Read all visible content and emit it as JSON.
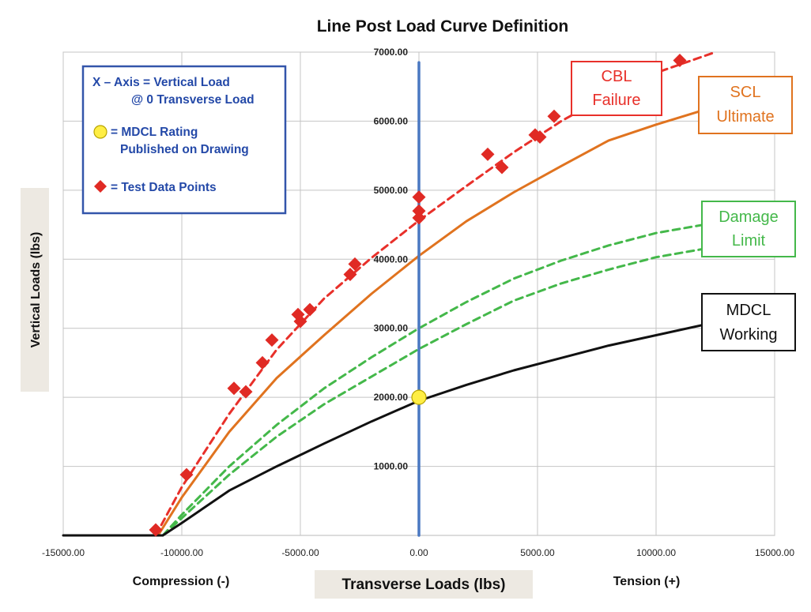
{
  "chart_data": {
    "type": "line",
    "title": "Line Post Load Curve Definition",
    "xlabel": "Transverse Loads (lbs)",
    "ylabel": "Vertical Loads (lbs)",
    "x_left_label": "Compression (-)",
    "x_right_label": "Tension (+)",
    "xlim": [
      -15000,
      15000
    ],
    "ylim": [
      0,
      7000
    ],
    "x_ticks": [
      "-15000.00",
      "-10000.00",
      "-5000.00",
      "0.00",
      "5000.00",
      "10000.00",
      "15000.00"
    ],
    "y_ticks": [
      "1000.00",
      "2000.00",
      "3000.00",
      "4000.00",
      "5000.00",
      "6000.00",
      "7000.00"
    ],
    "grid": true,
    "legend": {
      "position": "top-left",
      "items": [
        {
          "symbol": "none",
          "text": [
            "X – Axis =  Vertical Load",
            "@ 0 Transverse Load"
          ]
        },
        {
          "symbol": "yellow-circle",
          "text": [
            "= MDCL Rating",
            "Published on Drawing"
          ]
        },
        {
          "symbol": "red-diamond",
          "text": [
            "= Test Data Points"
          ]
        }
      ]
    },
    "series": [
      {
        "name": "CBL Failure",
        "label_lines": [
          "CBL",
          "Failure"
        ],
        "color": "#e8302a",
        "style": "dashed",
        "x": [
          -11100,
          -10000,
          -8000,
          -6000,
          -4000,
          -2000,
          0,
          2000,
          4000,
          6000,
          8000,
          10000,
          12500
        ],
        "y": [
          0,
          700,
          1760,
          2690,
          3430,
          4020,
          4560,
          5060,
          5550,
          6000,
          6380,
          6700,
          7000
        ]
      },
      {
        "name": "SCL Ultimate",
        "label_lines": [
          "SCL",
          "Ultimate"
        ],
        "color": "#e0731f",
        "style": "solid",
        "x": [
          -11000,
          -10000,
          -8000,
          -6000,
          -4000,
          -2000,
          0,
          2000,
          4000,
          6000,
          8000,
          10000,
          12000
        ],
        "y": [
          0,
          550,
          1500,
          2280,
          2900,
          3500,
          4050,
          4550,
          4970,
          5350,
          5720,
          5950,
          6160
        ]
      },
      {
        "name": "Damage Limit (upper)",
        "color": "#44b84a",
        "style": "dashed",
        "x": [
          -10800,
          -10000,
          -8000,
          -6000,
          -4000,
          -2000,
          0,
          2000,
          4000,
          6000,
          8000,
          10000,
          12000
        ],
        "y": [
          0,
          300,
          1000,
          1600,
          2130,
          2580,
          3000,
          3380,
          3720,
          3980,
          4200,
          4380,
          4500
        ]
      },
      {
        "name": "Damage Limit (lower)",
        "color": "#44b84a",
        "style": "dashed",
        "x": [
          -10800,
          -10000,
          -8000,
          -6000,
          -4000,
          -2000,
          0,
          2000,
          4000,
          6000,
          8000,
          10000,
          12000
        ],
        "y": [
          0,
          250,
          880,
          1430,
          1900,
          2300,
          2700,
          3060,
          3400,
          3650,
          3850,
          4030,
          4150
        ]
      },
      {
        "name": "MDCL Working",
        "label_lines": [
          "MDCL",
          "Working"
        ],
        "color": "#111111",
        "style": "solid",
        "x": [
          -15000,
          -10800,
          -10000,
          -8000,
          -6000,
          -4000,
          -2000,
          0,
          2000,
          4000,
          6000,
          8000,
          10000,
          12000
        ],
        "y": [
          0,
          0,
          180,
          650,
          1000,
          1330,
          1650,
          1950,
          2180,
          2390,
          2570,
          2750,
          2900,
          3050
        ]
      },
      {
        "name": "Vertical Load axis",
        "color": "#4a78c2",
        "style": "solid",
        "x": [
          0,
          0
        ],
        "y": [
          0,
          6850
        ]
      }
    ],
    "annotations": [
      {
        "series": "CBL Failure",
        "lines": [
          "CBL",
          "Failure"
        ]
      },
      {
        "series": "SCL Ultimate",
        "lines": [
          "SCL",
          "Ultimate"
        ]
      },
      {
        "series": "Damage Limit",
        "lines": [
          "Damage",
          "Limit"
        ]
      },
      {
        "series": "MDCL Working",
        "lines": [
          "MDCL",
          "Working"
        ]
      }
    ],
    "mdcl_rating_point": {
      "x": 0,
      "y": 2000,
      "color": "#ffee44"
    },
    "test_points": {
      "x": [
        -11100,
        -9800,
        -7800,
        -7300,
        -6600,
        -6200,
        -5100,
        -5000,
        -4600,
        -2900,
        -2700,
        0,
        0,
        0,
        2900,
        3500,
        4900,
        5100,
        5700,
        11000
      ],
      "y": [
        80,
        880,
        2130,
        2080,
        2500,
        2830,
        3200,
        3100,
        3270,
        3780,
        3930,
        4900,
        4700,
        4600,
        5520,
        5330,
        5800,
        5770,
        6070,
        6880
      ],
      "color": "#e02a24"
    }
  }
}
